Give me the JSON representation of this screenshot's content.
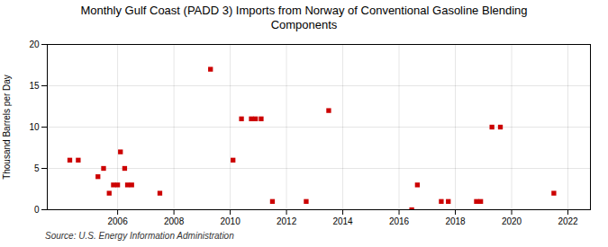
{
  "chart_data": {
    "type": "scatter",
    "title": "Monthly Gulf Coast (PADD 3) Imports from Norway of Conventional Gasoline Blending\nComponents",
    "ylabel": "Thousand Barrels per Day",
    "source": "Source: U.S. Energy Information Administration",
    "x": [
      2004.3,
      2004.6,
      2005.3,
      2005.5,
      2005.7,
      2005.85,
      2006.0,
      2006.1,
      2006.25,
      2006.35,
      2006.5,
      2007.5,
      2009.3,
      2010.1,
      2010.4,
      2010.75,
      2010.9,
      2011.1,
      2011.5,
      2012.7,
      2013.5,
      2016.45,
      2016.65,
      2017.5,
      2017.75,
      2018.75,
      2018.9,
      2019.3,
      2019.6,
      2021.5
    ],
    "values": [
      6,
      6,
      4,
      5,
      2,
      3,
      3,
      7,
      5,
      3,
      3,
      2,
      17,
      6,
      11,
      11,
      11,
      11,
      1,
      1,
      12,
      0,
      3,
      1,
      1,
      1,
      1,
      10,
      10,
      2
    ],
    "color": "#cc0000",
    "marker": "square",
    "xlim": [
      2003.5,
      2022.8
    ],
    "ylim": [
      0,
      20
    ],
    "xticks": [
      2006,
      2008,
      2010,
      2012,
      2014,
      2016,
      2018,
      2020,
      2022
    ],
    "yticks": [
      0,
      5,
      10,
      15,
      20
    ],
    "grid": true
  }
}
